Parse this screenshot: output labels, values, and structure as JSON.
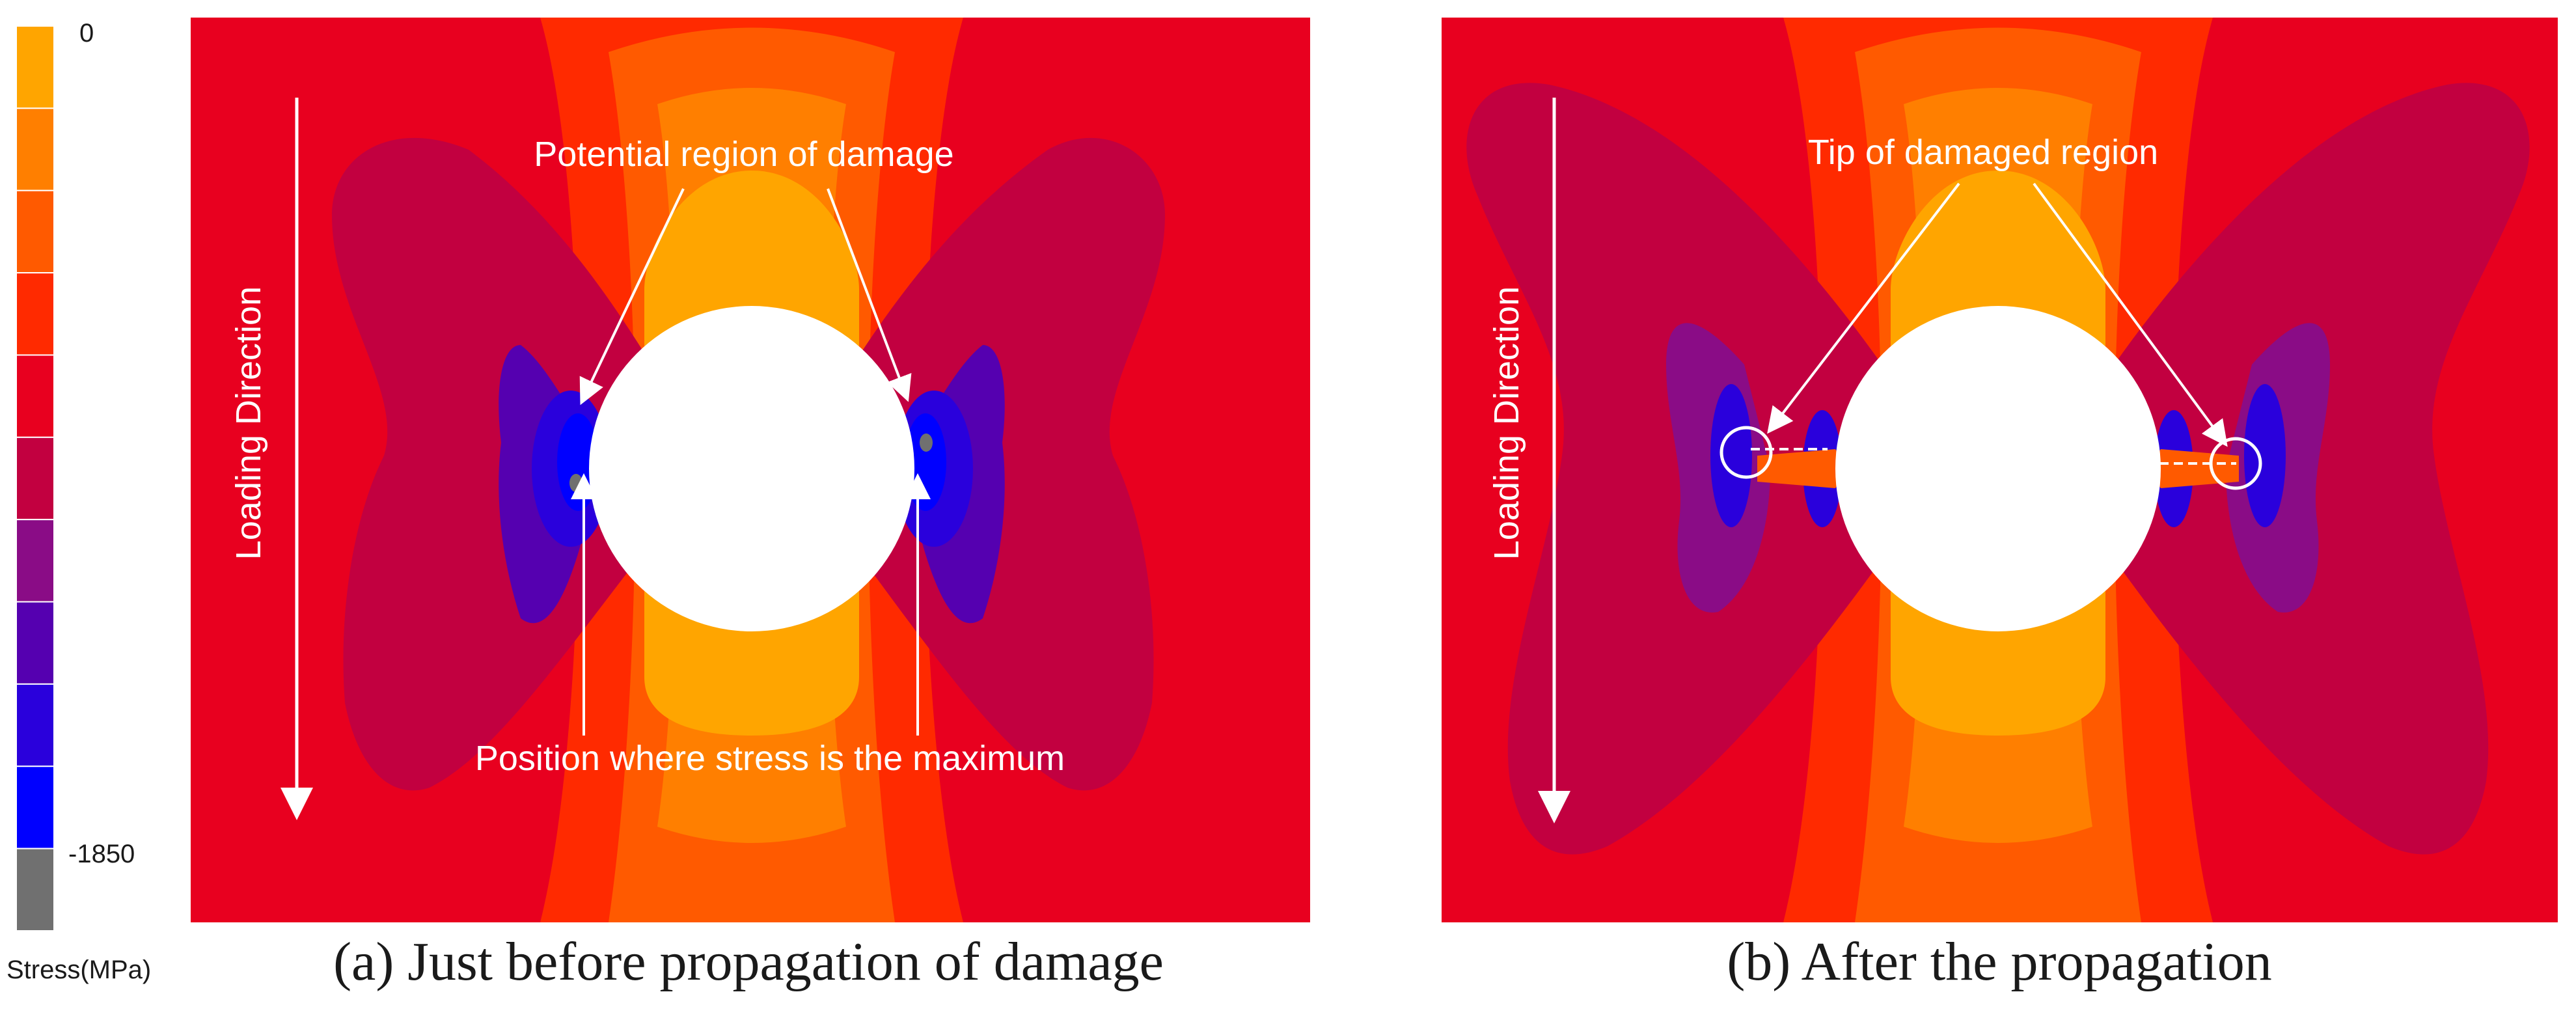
{
  "legend": {
    "max_label": "0",
    "min_label": "-1850",
    "title": "Stress(MPa)",
    "colors": [
      "#FFA500",
      "#FF7F00",
      "#FF5A00",
      "#FF2A00",
      "#E8001F",
      "#C20040",
      "#8A0C86",
      "#5500B0",
      "#2A00DC",
      "#0000FF",
      "#707070"
    ]
  },
  "panels": [
    {
      "caption": "(a) Just before propagation of damage",
      "loading_label": "Loading Direction",
      "annotation_top": "Potential region of damage",
      "annotation_bottom": "Position where stress is the maximum"
    },
    {
      "caption": "(b) After the propagation",
      "loading_label": "Loading Direction",
      "annotation_top": "Tip of damaged region"
    }
  ]
}
